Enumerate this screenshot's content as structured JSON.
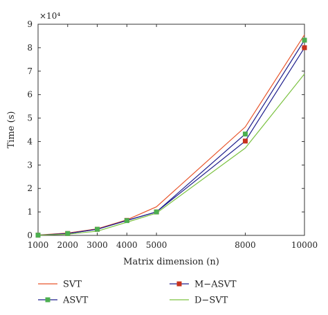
{
  "chart_data": {
    "type": "line",
    "xlabel": "Matrix dimension (n)",
    "ylabel": "Time (s)",
    "y_multiplier": "×10⁴",
    "x": [
      1000,
      2000,
      3000,
      4000,
      5000,
      8000,
      10000
    ],
    "x_ticks": [
      "1000",
      "2000",
      "3000",
      "4000",
      "5000",
      "8000",
      "10000"
    ],
    "y_ticks": [
      "0",
      "1",
      "2",
      "3",
      "4",
      "5",
      "6",
      "7",
      "8",
      "9"
    ],
    "xlim": [
      1000,
      10000
    ],
    "ylim": [
      0,
      9
    ],
    "y_scale": 10000,
    "legend_position": "bottom",
    "series": [
      {
        "name": "SVT",
        "color": "#e8542a",
        "marker": "none",
        "values": [
          150,
          1000,
          2800,
          6600,
          12200,
          46200,
          85500
        ]
      },
      {
        "name": "M−ASVT",
        "color": "#1e1e8c",
        "marker": "square",
        "marker_color": "#c8321e",
        "values": [
          100,
          800,
          2600,
          6400,
          10000,
          40200,
          80000
        ]
      },
      {
        "name": "ASVT",
        "color": "#1e1e8c",
        "marker": "square",
        "marker_color": "#4caf50",
        "values": [
          100,
          800,
          2600,
          6300,
          10000,
          43200,
          83200
        ]
      },
      {
        "name": "D−SVT",
        "color": "#7cc242",
        "marker": "none",
        "values": [
          80,
          500,
          1800,
          5600,
          9500,
          37200,
          68800
        ]
      }
    ]
  }
}
